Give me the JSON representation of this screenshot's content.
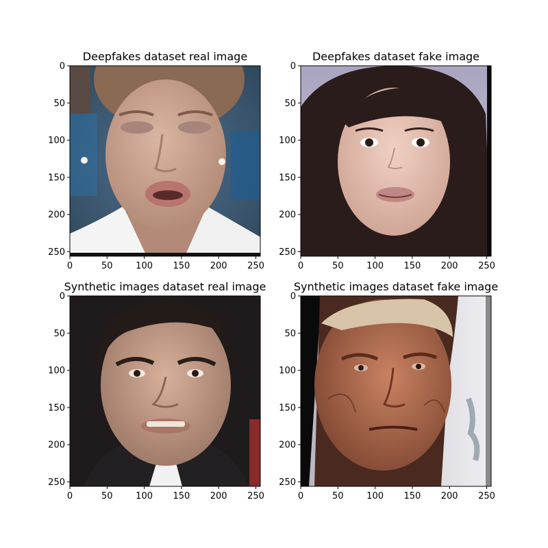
{
  "chart_data": [
    {
      "type": "image",
      "title": "Deepfakes dataset real image",
      "xlim": [
        0,
        256
      ],
      "ylim": [
        256,
        0
      ],
      "xticks": [
        0,
        50,
        100,
        150,
        200,
        250
      ],
      "yticks": [
        0,
        50,
        100,
        150,
        200,
        250
      ],
      "image": {
        "subject": "woman with slicked-back brown hair, eyes nearly closed, mouth open, white collar, blurred blue newsroom background",
        "palette": {
          "background": "#3d5a74",
          "skin": "#cfa996",
          "hair": "#7a5a44",
          "lips": "#b8746e",
          "clothing": "#f2f2f2"
        }
      }
    },
    {
      "type": "image",
      "title": "Deepfakes dataset fake image",
      "xlim": [
        0,
        256
      ],
      "ylim": [
        256,
        0
      ],
      "xticks": [
        0,
        50,
        100,
        150,
        200,
        250
      ],
      "yticks": [
        0,
        50,
        100,
        150,
        200,
        250
      ],
      "image": {
        "subject": "young woman with long dark hair and bangs, slight smile, light lavender background",
        "palette": {
          "background": "#b9b3c6",
          "skin": "#e7c3b6",
          "hair": "#2a1c1d",
          "lips": "#c08884"
        }
      }
    },
    {
      "type": "image",
      "title": "Synthetic images dataset real image",
      "xlim": [
        0,
        256
      ],
      "ylim": [
        256,
        0
      ],
      "xticks": [
        0,
        50,
        100,
        150,
        200,
        250
      ],
      "yticks": [
        0,
        50,
        100,
        150,
        200,
        250
      ],
      "image": {
        "subject": "man with short dark hair and dark eyebrows, teeth showing, dark jacket, dark background with red accent at right",
        "palette": {
          "background": "#1e1a1c",
          "skin": "#c9a08a",
          "hair": "#231b17",
          "accent": "#8a2a2a"
        }
      }
    },
    {
      "type": "image",
      "title": "Synthetic images dataset fake image",
      "xlim": [
        0,
        256
      ],
      "ylim": [
        256,
        0
      ],
      "xticks": [
        0,
        50,
        100,
        150,
        200,
        250
      ],
      "yticks": [
        0,
        50,
        100,
        150,
        200,
        250
      ],
      "image": {
        "subject": "older man with very short light hair, weathered reddish skin, stern expression, face rotated, light background at right with dark border at left",
        "palette": {
          "background": "#d6d4da",
          "skin": "#b9704f",
          "hair": "#d8c4a8",
          "border": "#0a0a0a"
        }
      }
    }
  ]
}
